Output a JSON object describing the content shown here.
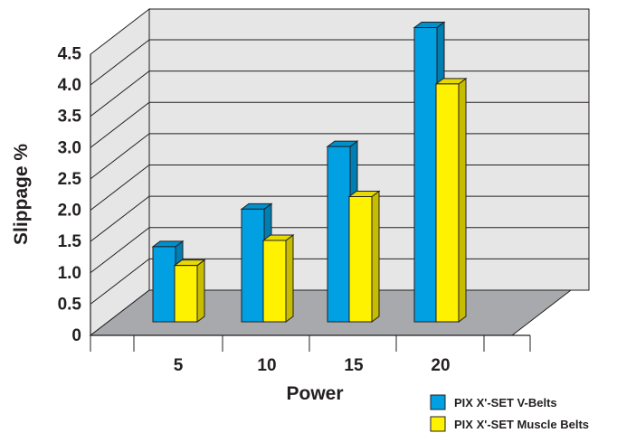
{
  "chart_data": {
    "type": "bar",
    "style": "3d",
    "categories": [
      "5",
      "10",
      "15",
      "20"
    ],
    "series": [
      {
        "name": "PIX X'-SET V-Belts",
        "color": "#00a0e3",
        "values": [
          1.2,
          1.8,
          2.8,
          4.7
        ]
      },
      {
        "name": "PIX X'-SET Muscle Belts",
        "color": "#fff200",
        "values": [
          0.9,
          1.3,
          2.0,
          3.8
        ]
      }
    ],
    "xlabel": "Power",
    "ylabel": "Slippage %",
    "yticks": [
      "0",
      "0.5",
      "1.0",
      "1.5",
      "2.0",
      "2.5",
      "3.0",
      "3.5",
      "4.0",
      "4.5"
    ],
    "ylim": [
      0,
      5
    ],
    "grid": true,
    "legend_position": "bottom-right"
  }
}
